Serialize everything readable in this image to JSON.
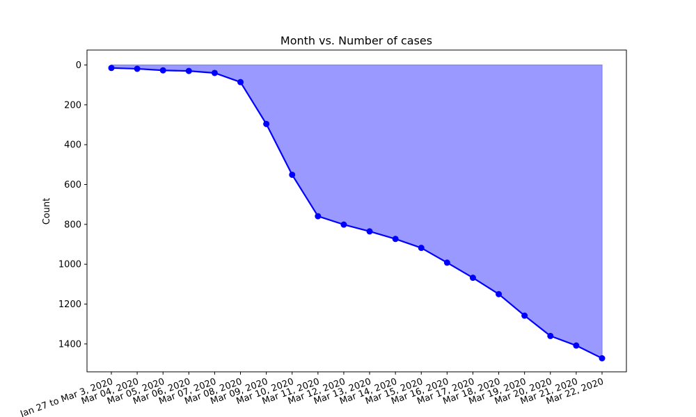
{
  "chart_data": {
    "type": "line",
    "title": "Month vs. Number of cases",
    "xlabel": "",
    "ylabel": "Count",
    "y_inverted": true,
    "ylim": [
      1540,
      -75
    ],
    "y_ticks": [
      0,
      200,
      400,
      600,
      800,
      1000,
      1200,
      1400
    ],
    "grid": false,
    "legend": "none",
    "fill": "between line and 0",
    "colors": {
      "line": "#0000ff",
      "fill": "#9999ff",
      "fill_edge": "#8080ff"
    },
    "categories": [
      "Jan 27 to Mar 3, 2020",
      "Mar 04, 2020",
      "Mar 05, 2020",
      "Mar 06, 2020",
      "Mar 07, 2020",
      "Mar 08, 2020",
      "Mar 09, 2020",
      "Mar 10, 2020",
      "Mar 11, 2020",
      "Mar 12, 2020",
      "Mar 13, 2020",
      "Mar 14, 2020",
      "Mar 15, 2020",
      "Mar 16, 2020",
      "Mar 17, 2020",
      "Mar 18, 2020",
      "Mar 19, 2020",
      "Mar 20, 2020",
      "Mar 21, 2020",
      "Mar 22, 2020"
    ],
    "values": [
      15,
      19,
      27,
      30,
      40,
      86,
      296,
      551,
      759,
      801,
      835,
      873,
      918,
      992,
      1068,
      1150,
      1258,
      1360,
      1408,
      1472
    ]
  }
}
